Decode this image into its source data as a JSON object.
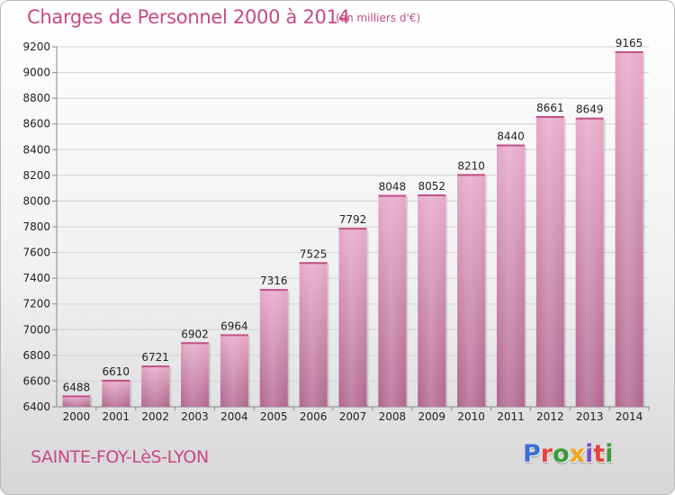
{
  "header": {
    "title": "Charges de Personnel 2000 à 2014",
    "subtitle": "(en milliers d'€)"
  },
  "footer": {
    "city": "SAINTE-FOY-LèS-LYON",
    "logo": "Proxiti",
    "logo_colors": [
      "#3a6fd8",
      "#e8413c",
      "#3a9a3c",
      "#f0a81c",
      "#7b4fc9",
      "#e8413c",
      "#3a9a3c"
    ]
  },
  "chart_data": {
    "type": "bar",
    "title": "Charges de Personnel 2000 à 2014",
    "subtitle": "(en milliers d'€)",
    "categories": [
      "2000",
      "2001",
      "2002",
      "2003",
      "2004",
      "2005",
      "2006",
      "2007",
      "2008",
      "2009",
      "2010",
      "2011",
      "2012",
      "2013",
      "2014"
    ],
    "values": [
      6488,
      6610,
      6721,
      6902,
      6964,
      7316,
      7525,
      7792,
      8048,
      8052,
      8210,
      8440,
      8661,
      8649,
      9165
    ],
    "ylim": [
      6400,
      9200
    ],
    "yticks": [
      6400,
      6600,
      6800,
      7000,
      7200,
      7400,
      7600,
      7800,
      8000,
      8200,
      8400,
      8600,
      8800,
      9000,
      9200
    ],
    "grid": true,
    "bar_color": "#c86e9c"
  }
}
